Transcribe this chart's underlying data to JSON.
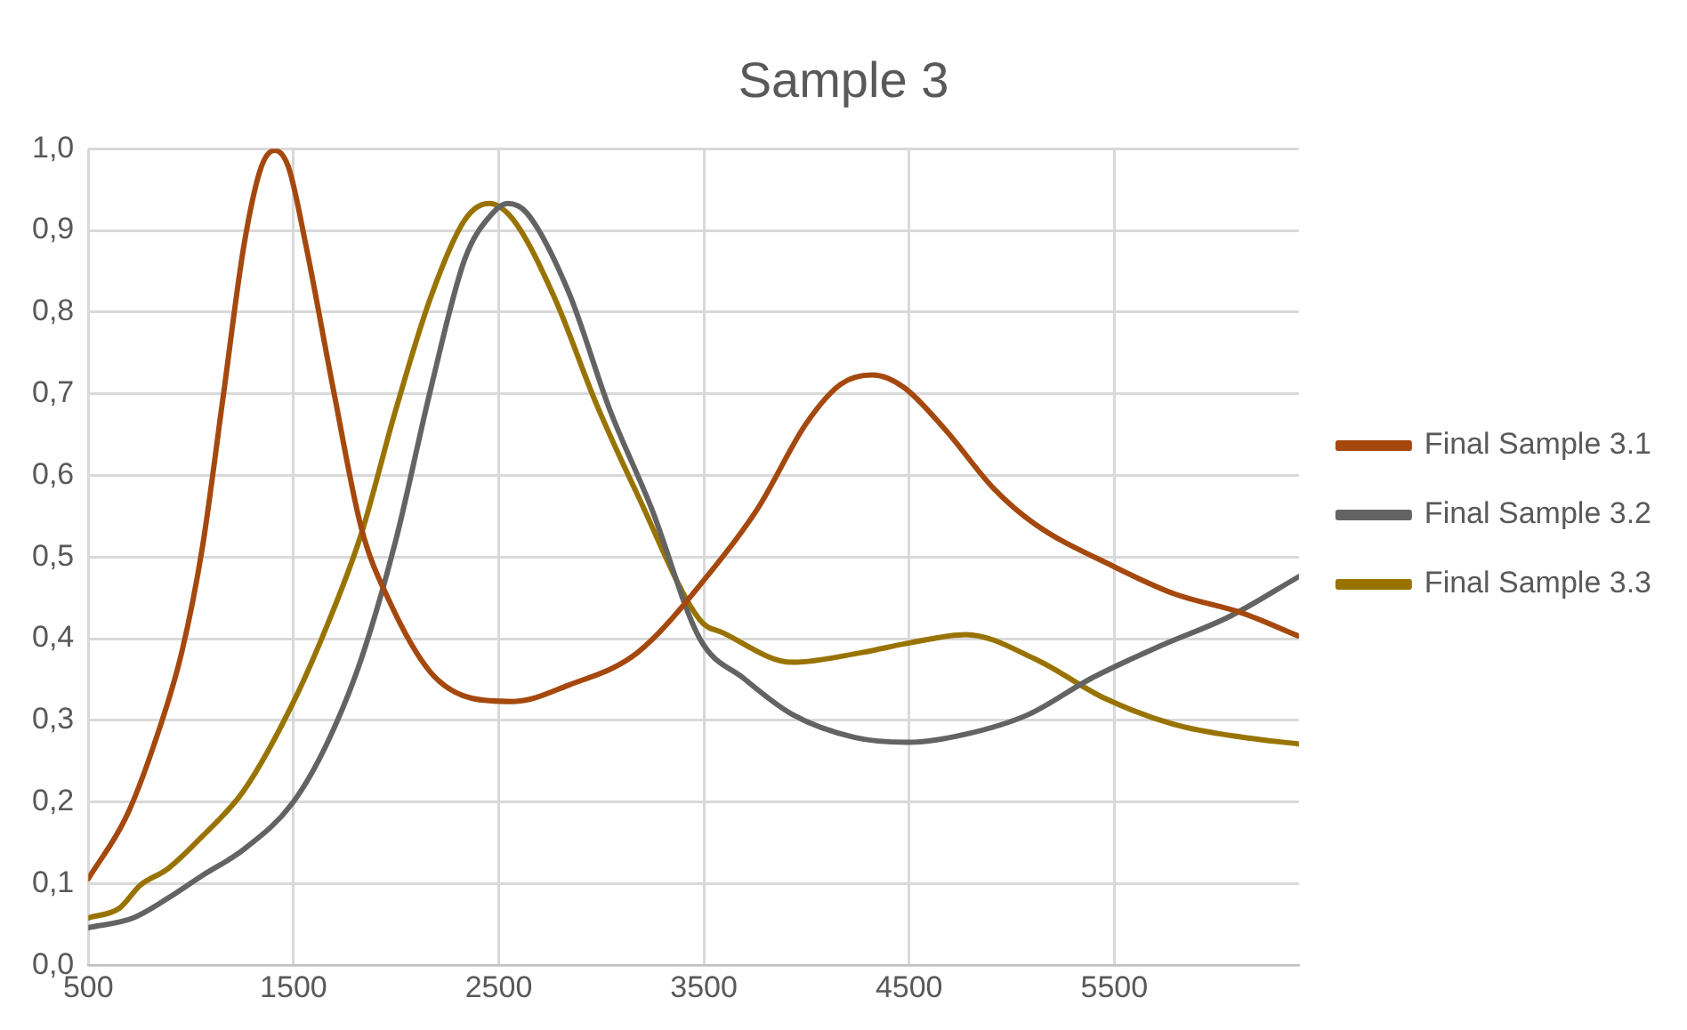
{
  "chart_data": {
    "type": "line",
    "title": "Sample 3",
    "xlim": [
      500,
      6400
    ],
    "xticks": [
      500,
      1500,
      2500,
      3500,
      4500,
      5500
    ],
    "ylim": [
      0,
      1
    ],
    "yticks": [
      {
        "value": 0,
        "label": "0,0"
      },
      {
        "value": 0.1,
        "label": "0,1"
      },
      {
        "value": 0.2,
        "label": "0,2"
      },
      {
        "value": 0.3,
        "label": "0,3"
      },
      {
        "value": 0.4,
        "label": "0,4"
      },
      {
        "value": 0.5,
        "label": "0,5"
      },
      {
        "value": 0.6,
        "label": "0,6"
      },
      {
        "value": 0.7,
        "label": "0,7"
      },
      {
        "value": 0.8,
        "label": "0,8"
      },
      {
        "value": 0.9,
        "label": "0,9"
      },
      {
        "value": 1,
        "label": "1,0"
      }
    ],
    "grid": true,
    "legend": "right",
    "marker": "none",
    "line_style": "solid",
    "series": [
      {
        "name": "Final Sample 3.1",
        "color": "#a5480e",
        "x": [
          500,
          685,
          820,
          955,
          1056,
          1157,
          1258,
          1342,
          1409,
          1476,
          1561,
          1695,
          1830,
          1965,
          2167,
          2369,
          2571,
          2840,
          3177,
          3527,
          3764,
          4000,
          4169,
          4321,
          4473,
          4676,
          4912,
          5115,
          5500,
          5791,
          6128,
          6400
        ],
        "values": [
          0.106,
          0.182,
          0.27,
          0.383,
          0.512,
          0.696,
          0.881,
          0.977,
          0.998,
          0.977,
          0.881,
          0.704,
          0.536,
          0.447,
          0.359,
          0.327,
          0.323,
          0.343,
          0.383,
          0.48,
          0.56,
          0.664,
          0.712,
          0.723,
          0.708,
          0.656,
          0.584,
          0.54,
          0.488,
          0.455,
          0.431,
          0.403
        ]
      },
      {
        "name": "Final Sample 3.2",
        "color": "#636363",
        "x": [
          500,
          719,
          887,
          1056,
          1258,
          1493,
          1662,
          1830,
          1998,
          2167,
          2335,
          2470,
          2544,
          2638,
          2840,
          3042,
          3244,
          3480,
          3696,
          3932,
          4236,
          4500,
          4777,
          5081,
          5385,
          5723,
          6061,
          6400
        ],
        "values": [
          0.046,
          0.058,
          0.082,
          0.11,
          0.142,
          0.198,
          0.271,
          0.375,
          0.52,
          0.704,
          0.865,
          0.921,
          0.933,
          0.921,
          0.825,
          0.68,
          0.56,
          0.4,
          0.351,
          0.307,
          0.279,
          0.273,
          0.283,
          0.307,
          0.351,
          0.391,
          0.427,
          0.476
        ]
      },
      {
        "name": "Final Sample 3.3",
        "color": "#997300",
        "x": [
          500,
          652,
          753,
          887,
          1056,
          1258,
          1493,
          1662,
          1830,
          1998,
          2167,
          2335,
          2453,
          2571,
          2773,
          2975,
          3177,
          3480,
          3595,
          3932,
          4270,
          4507,
          4777,
          5115,
          5453,
          5791,
          6128,
          6400
        ],
        "values": [
          0.058,
          0.07,
          0.098,
          0.118,
          0.158,
          0.214,
          0.319,
          0.415,
          0.528,
          0.68,
          0.817,
          0.913,
          0.933,
          0.913,
          0.817,
          0.688,
          0.576,
          0.423,
          0.407,
          0.371,
          0.383,
          0.395,
          0.405,
          0.375,
          0.327,
          0.295,
          0.279,
          0.271
        ]
      }
    ]
  }
}
